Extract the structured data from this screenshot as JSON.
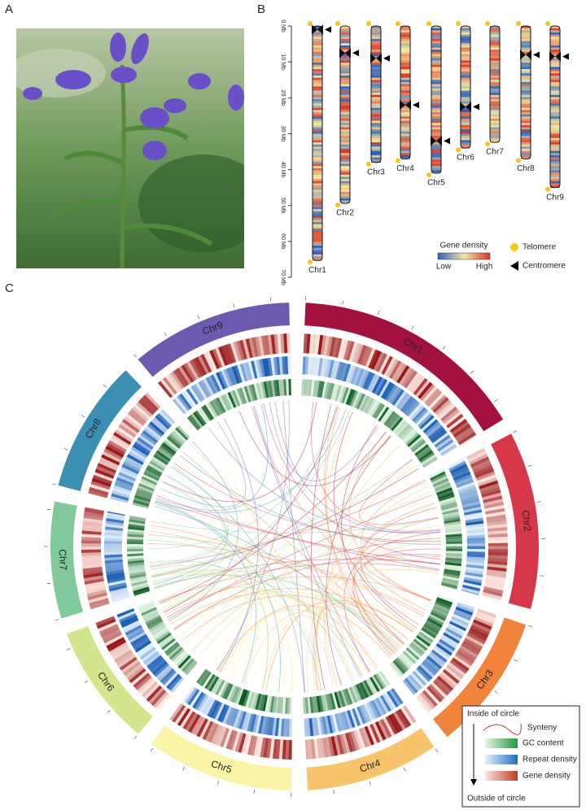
{
  "panel_labels": [
    "A",
    "B",
    "C"
  ],
  "chart_data": [
    {
      "type": "ideogram",
      "ylim": [
        0,
        70
      ],
      "yticks": [
        {
          "value": 0,
          "label": "0 Mb"
        },
        {
          "value": 10,
          "label": "10 Mb"
        },
        {
          "value": 20,
          "label": "20 Mb"
        },
        {
          "value": 30,
          "label": "30 Mb"
        },
        {
          "value": 40,
          "label": "40 Mb"
        },
        {
          "value": 50,
          "label": "50 Mb"
        },
        {
          "value": 60,
          "label": "60 Mb"
        },
        {
          "value": 70,
          "label": "70 Mb"
        }
      ],
      "categories": [
        "Chr1",
        "Chr2",
        "Chr3",
        "Chr4",
        "Chr5",
        "Chr6",
        "Chr7",
        "Chr8",
        "Chr9"
      ],
      "values": [
        65.3,
        49.4,
        38,
        37,
        41,
        34,
        32.4,
        37,
        45
      ],
      "centromeres": [
        1,
        7.5,
        9,
        22,
        32,
        22.5,
        null,
        8,
        8.5
      ],
      "legend": {
        "title": "Gene density",
        "low": "Low",
        "high": "High",
        "telomere": "Telomere",
        "centromere": "Centromere"
      }
    },
    {
      "type": "circos",
      "categories": [
        "Chr1",
        "Chr2",
        "Chr3",
        "Chr4",
        "Chr5",
        "Chr6",
        "Chr7",
        "Chr8",
        "Chr9"
      ],
      "colors": [
        "#a3123f",
        "#d6384a",
        "#f2833a",
        "#f7c46c",
        "#fbf3a6",
        "#d3e68d",
        "#7fc99a",
        "#3a8fb3",
        "#6c5ab0"
      ],
      "legend": {
        "title": "Inside of circle",
        "synteny": "Synteny",
        "gc": "GC content",
        "repeat": "Repeat density",
        "gene": "Gene density",
        "bottom": "Outside of circle"
      }
    }
  ]
}
